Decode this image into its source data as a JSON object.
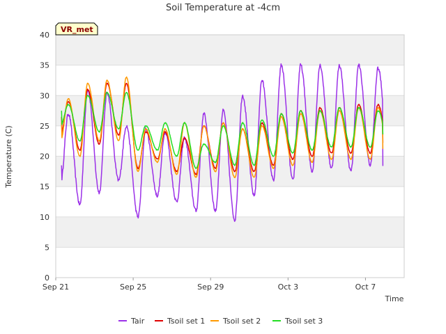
{
  "chart_data": {
    "type": "line",
    "title": "Soil Temperature at -4cm",
    "xlabel": "Time",
    "ylabel": "Temperature (C)",
    "badge": "VR_met",
    "x_unit": "day",
    "xlim": [
      "Sep 21",
      "Oct 9"
    ],
    "ylim": [
      0,
      40
    ],
    "yticks": [
      0,
      5,
      10,
      15,
      20,
      25,
      30,
      35,
      40
    ],
    "xticks": [
      {
        "label": "Sep 21",
        "day": 0
      },
      {
        "label": "Sep 25",
        "day": 4
      },
      {
        "label": "Sep 29",
        "day": 8
      },
      {
        "label": "Oct 3",
        "day": 12
      },
      {
        "label": "Oct 7",
        "day": 16
      }
    ],
    "grid": true,
    "legend_position": "bottom",
    "colors": {
      "Tair": "#9b30e8",
      "Tsoil set 1": "#e00000",
      "Tsoil set 2": "#ff9900",
      "Tsoil set 3": "#22dd22",
      "band": "#f0f0f0",
      "badge_bg": "#ffffcc"
    },
    "daily_peak_day_offset": 0.65,
    "daily_trough_day_offset": 0.25,
    "series": [
      {
        "name": "Tair",
        "start_day": 0.3,
        "end_day": 16.9,
        "start_value": 18.5,
        "end_value": 18.4,
        "daily_max": [
          27,
          31,
          30.5,
          25,
          24.5,
          24,
          23,
          27,
          27.5,
          30,
          32.5,
          35,
          35,
          35,
          35,
          35,
          34.5
        ],
        "daily_min": [
          15.5,
          12,
          14,
          16,
          10,
          13.5,
          12.5,
          11,
          11,
          9.5,
          13.5,
          16,
          16,
          17.5,
          18,
          17.5,
          18.5
        ]
      },
      {
        "name": "Tsoil set 1",
        "start_day": 0.3,
        "end_day": 16.9,
        "start_value": 26.5,
        "end_value": 22.2,
        "daily_max": [
          29,
          31,
          32,
          32,
          24,
          24,
          23,
          25,
          25.5,
          24.5,
          25.5,
          27,
          27.5,
          28,
          28,
          28.5,
          28.5
        ],
        "daily_min": [
          23.5,
          21,
          22,
          23.5,
          18,
          19.5,
          17.5,
          17,
          18,
          17.5,
          17.5,
          18.5,
          19.5,
          20,
          20.5,
          20.5,
          20.5
        ]
      },
      {
        "name": "Tsoil set 2",
        "start_day": 0.3,
        "end_day": 16.9,
        "start_value": 25.5,
        "end_value": 21.2,
        "daily_max": [
          29.5,
          32,
          32.5,
          33,
          24.5,
          24.5,
          25.5,
          25,
          25.5,
          24.5,
          25,
          26.5,
          27,
          27.5,
          27.5,
          28,
          28
        ],
        "daily_min": [
          22.5,
          20,
          22.5,
          22.5,
          17.5,
          19,
          17,
          16.5,
          17.5,
          16.5,
          16.5,
          18,
          18.5,
          19,
          19.5,
          19.5,
          19.5
        ]
      },
      {
        "name": "Tsoil set 3",
        "start_day": 0.3,
        "end_day": 16.9,
        "start_value": 27.5,
        "end_value": 23.6,
        "daily_max": [
          28.5,
          30,
          30.5,
          30.5,
          25,
          25.5,
          25.5,
          22,
          25,
          25.5,
          26,
          27,
          27.5,
          27.5,
          28,
          28,
          27.5
        ],
        "daily_min": [
          25,
          22.5,
          24,
          24.5,
          21,
          21,
          20,
          18,
          19,
          18.5,
          18.5,
          20,
          20.5,
          21,
          21.5,
          21.5,
          21.5
        ]
      }
    ]
  }
}
